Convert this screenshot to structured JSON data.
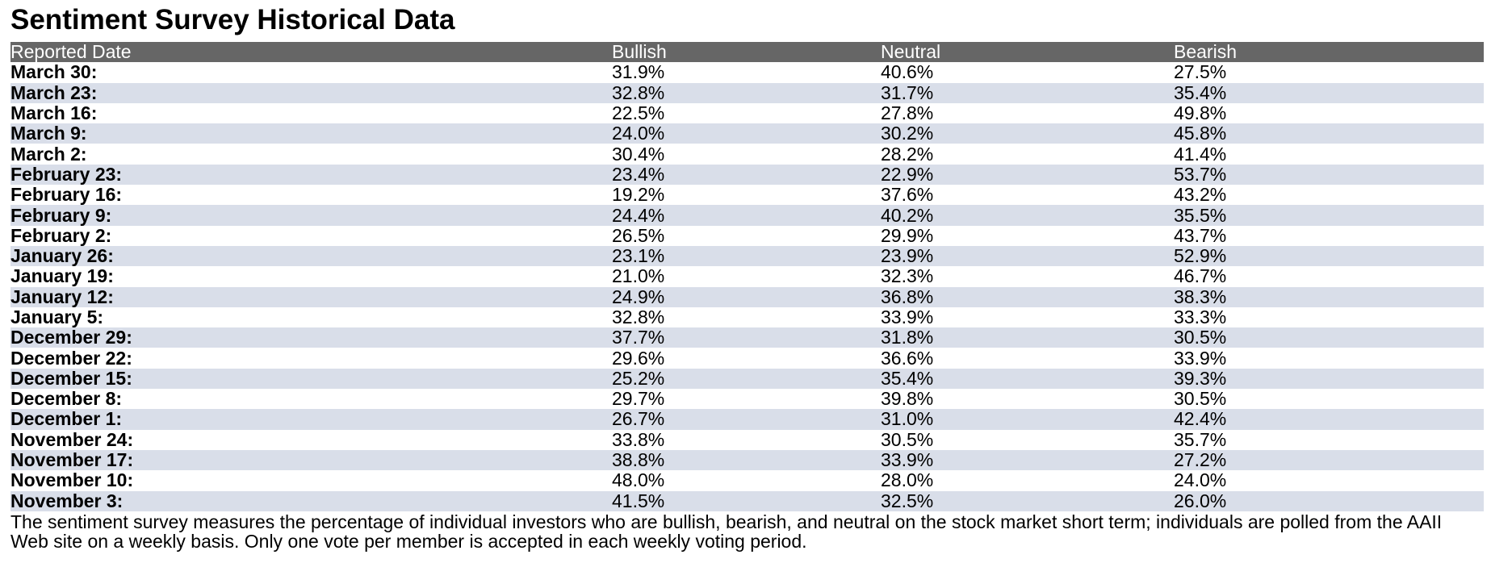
{
  "title": "Sentiment Survey Historical Data",
  "table": {
    "headers": [
      "Reported Date",
      "Bullish",
      "Neutral",
      "Bearish"
    ],
    "rows": [
      {
        "date": "March 30:",
        "bullish": "31.9%",
        "neutral": "40.6%",
        "bearish": "27.5%"
      },
      {
        "date": "March 23:",
        "bullish": "32.8%",
        "neutral": "31.7%",
        "bearish": "35.4%"
      },
      {
        "date": "March 16:",
        "bullish": "22.5%",
        "neutral": "27.8%",
        "bearish": "49.8%"
      },
      {
        "date": "March 9:",
        "bullish": "24.0%",
        "neutral": "30.2%",
        "bearish": "45.8%"
      },
      {
        "date": "March 2:",
        "bullish": "30.4%",
        "neutral": "28.2%",
        "bearish": "41.4%"
      },
      {
        "date": "February 23:",
        "bullish": "23.4%",
        "neutral": "22.9%",
        "bearish": "53.7%"
      },
      {
        "date": "February 16:",
        "bullish": "19.2%",
        "neutral": "37.6%",
        "bearish": "43.2%"
      },
      {
        "date": "February 9:",
        "bullish": "24.4%",
        "neutral": "40.2%",
        "bearish": "35.5%"
      },
      {
        "date": "February 2:",
        "bullish": "26.5%",
        "neutral": "29.9%",
        "bearish": "43.7%"
      },
      {
        "date": "January 26:",
        "bullish": "23.1%",
        "neutral": "23.9%",
        "bearish": "52.9%"
      },
      {
        "date": "January 19:",
        "bullish": "21.0%",
        "neutral": "32.3%",
        "bearish": "46.7%"
      },
      {
        "date": "January 12:",
        "bullish": "24.9%",
        "neutral": "36.8%",
        "bearish": "38.3%"
      },
      {
        "date": "January 5:",
        "bullish": "32.8%",
        "neutral": "33.9%",
        "bearish": "33.3%"
      },
      {
        "date": "December 29:",
        "bullish": "37.7%",
        "neutral": "31.8%",
        "bearish": "30.5%"
      },
      {
        "date": "December 22:",
        "bullish": "29.6%",
        "neutral": "36.6%",
        "bearish": "33.9%"
      },
      {
        "date": "December 15:",
        "bullish": "25.2%",
        "neutral": "35.4%",
        "bearish": "39.3%"
      },
      {
        "date": "December 8:",
        "bullish": "29.7%",
        "neutral": "39.8%",
        "bearish": "30.5%"
      },
      {
        "date": "December 1:",
        "bullish": "26.7%",
        "neutral": "31.0%",
        "bearish": "42.4%"
      },
      {
        "date": "November 24:",
        "bullish": "33.8%",
        "neutral": "30.5%",
        "bearish": "35.7%"
      },
      {
        "date": "November 17:",
        "bullish": "38.8%",
        "neutral": "33.9%",
        "bearish": "27.2%"
      },
      {
        "date": "November 10:",
        "bullish": "48.0%",
        "neutral": "28.0%",
        "bearish": "24.0%"
      },
      {
        "date": "November 3:",
        "bullish": "41.5%",
        "neutral": "32.5%",
        "bearish": "26.0%"
      }
    ]
  },
  "footnote": "The sentiment survey measures the percentage of individual investors who are bullish, bearish, and neutral on the stock market short term; individuals are polled from the AAII Web site on a weekly basis. Only one vote per member is accepted in each weekly voting period.",
  "colors": {
    "header_bg": "#666666",
    "header_text": "#ffffff",
    "stripe_bg": "#d9dee9"
  }
}
